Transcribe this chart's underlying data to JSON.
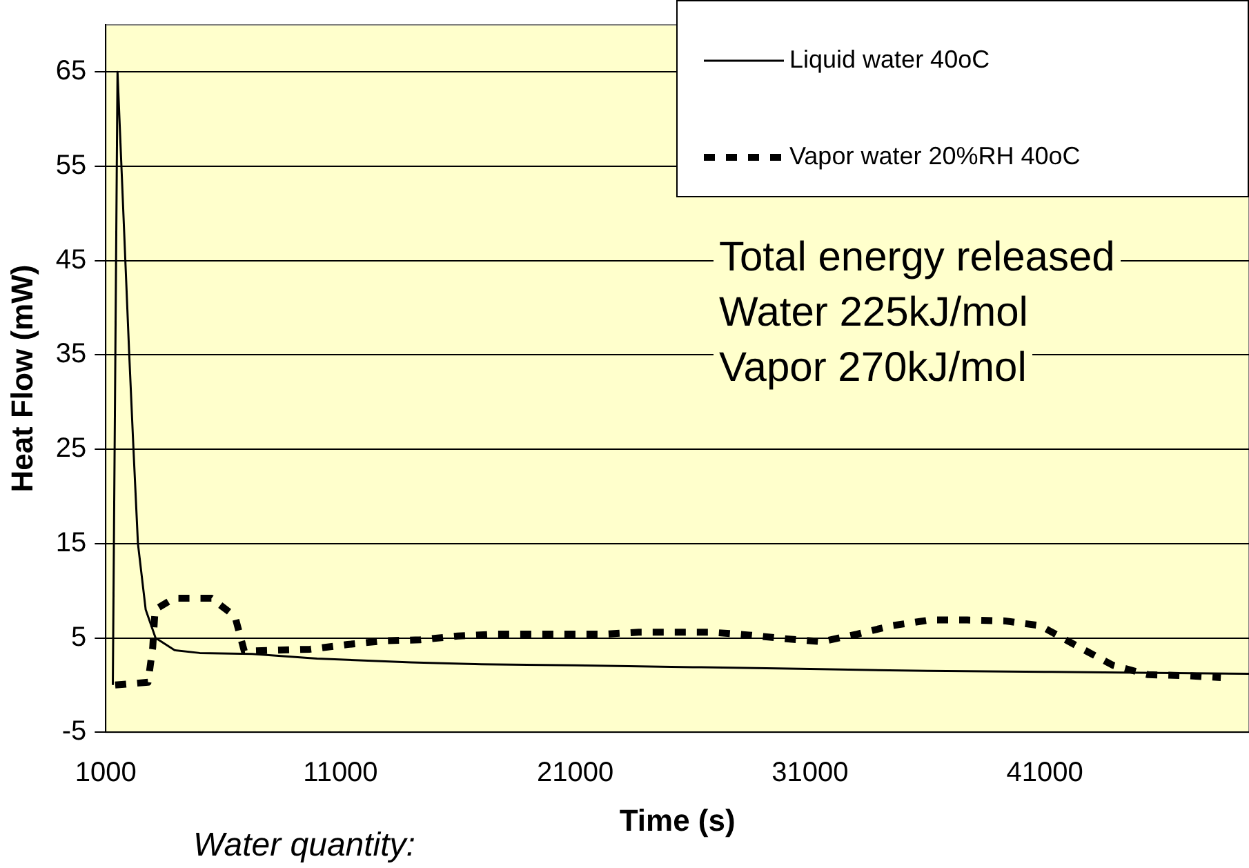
{
  "chart_data": {
    "type": "line",
    "xlabel": "Time (s)",
    "ylabel": "Heat Flow (mW)",
    "xlim": [
      1000,
      49700
    ],
    "xticks": [
      1000,
      11000,
      21000,
      31000,
      41000
    ],
    "ylim": [
      -5,
      70
    ],
    "yticks": [
      -5,
      5,
      15,
      25,
      35,
      45,
      55,
      65
    ],
    "grid": "y",
    "legend": "top right",
    "marker": "none",
    "annotations": [
      "Total energy released",
      "Water 225kJ/mol",
      "Vapor 270kJ/mol",
      "Water quantity:"
    ],
    "series": [
      {
        "name": "Liquid water 40oC",
        "color": "#000000",
        "line_style": "solid",
        "x": [
          1300,
          1500,
          2000,
          2180,
          2370,
          2700,
          3120,
          3930,
          5000,
          7230,
          10000,
          14000,
          17000,
          21000,
          26000,
          31000,
          36000,
          41000,
          45000,
          49700
        ],
        "values": [
          0,
          65,
          35,
          25,
          15,
          8,
          5,
          3.7,
          3.4,
          3.3,
          2.8,
          2.4,
          2.2,
          2.1,
          1.9,
          1.7,
          1.5,
          1.4,
          1.3,
          1.2
        ]
      },
      {
        "name": "Vapor water 20%RH 40oC",
        "color": "#000000",
        "line_style": "dashed",
        "x": [
          1400,
          2800,
          3000,
          3100,
          3900,
          5500,
          6500,
          6900,
          8300,
          9700,
          11300,
          12900,
          14400,
          16000,
          17600,
          19100,
          20600,
          22200,
          23700,
          25200,
          26800,
          28400,
          30000,
          31500,
          33000,
          34500,
          36100,
          37700,
          39300,
          40800,
          42400,
          43900,
          45400,
          47000,
          48500
        ],
        "values": [
          0,
          0.3,
          4,
          8,
          9.2,
          9.2,
          7.3,
          3.6,
          3.7,
          3.8,
          4.3,
          4.7,
          4.8,
          5.2,
          5.4,
          5.4,
          5.4,
          5.4,
          5.6,
          5.6,
          5.6,
          5.3,
          4.9,
          4.6,
          5.4,
          6.3,
          6.9,
          6.9,
          6.8,
          6.3,
          4.1,
          2.1,
          1.1,
          1.0,
          0.8
        ]
      }
    ]
  }
}
